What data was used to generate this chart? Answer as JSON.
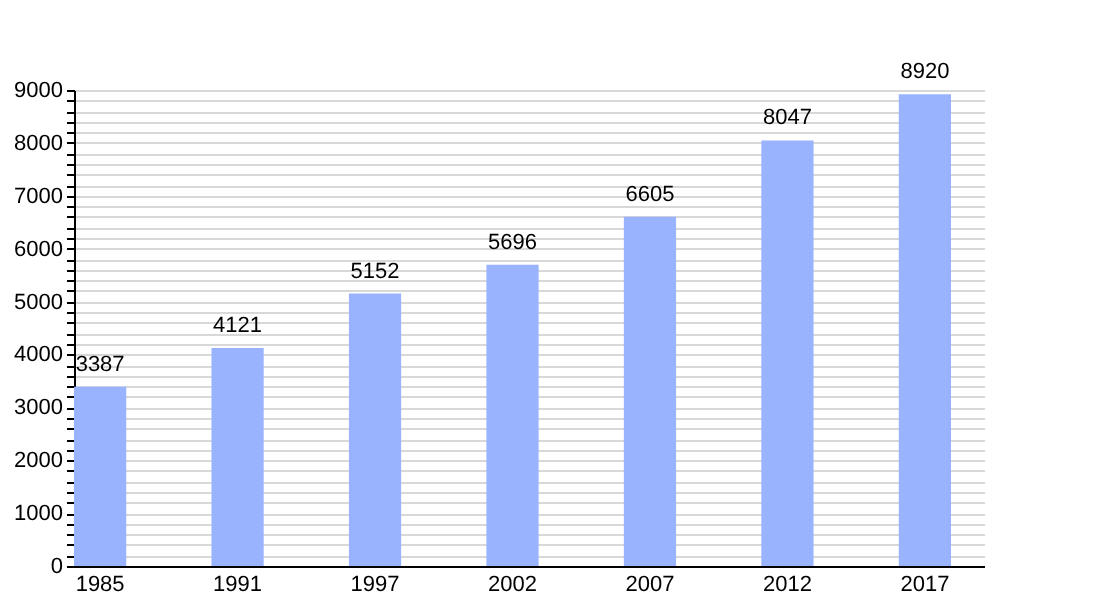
{
  "chart_data": {
    "type": "bar",
    "categories": [
      "1985",
      "1991",
      "1997",
      "2002",
      "2007",
      "2012",
      "2017"
    ],
    "values": [
      3387,
      4121,
      5152,
      5696,
      6605,
      8047,
      8920
    ],
    "color": "#99b3ff",
    "data_labels": true,
    "ylim": [
      0,
      9000
    ],
    "yticks": [
      0,
      {
        "value": 200,
        "label": null
      },
      {
        "value": 400,
        "label": null
      },
      {
        "value": 600,
        "label": null
      },
      {
        "value": 800,
        "label": null
      },
      1000,
      {
        "value": 1200,
        "label": null
      },
      {
        "value": 1400,
        "label": null
      },
      {
        "value": 1600,
        "label": null
      },
      {
        "value": 1800,
        "label": null
      },
      2000,
      {
        "value": 2200,
        "label": null
      },
      {
        "value": 2400,
        "label": null
      },
      {
        "value": 2600,
        "label": null
      },
      {
        "value": 2800,
        "label": null
      },
      3000,
      {
        "value": 3200,
        "label": null
      },
      {
        "value": 3400,
        "label": null
      },
      {
        "value": 3600,
        "label": null
      },
      {
        "value": 3800,
        "label": null
      },
      4000,
      {
        "value": 4200,
        "label": null
      },
      {
        "value": 4400,
        "label": null
      },
      {
        "value": 4600,
        "label": null
      },
      {
        "value": 4800,
        "label": null
      },
      5000,
      {
        "value": 5200,
        "label": null
      },
      {
        "value": 5400,
        "label": null
      },
      {
        "value": 5600,
        "label": null
      },
      {
        "value": 5800,
        "label": null
      },
      6000,
      {
        "value": 6200,
        "label": null
      },
      {
        "value": 6400,
        "label": null
      },
      {
        "value": 6600,
        "label": null
      },
      {
        "value": 6800,
        "label": null
      },
      7000,
      {
        "value": 7200,
        "label": null
      },
      {
        "value": 7400,
        "label": null
      },
      {
        "value": 7600,
        "label": null
      },
      {
        "value": 7800,
        "label": null
      },
      8000,
      {
        "value": 8200,
        "label": null
      },
      {
        "value": 8400,
        "label": null
      },
      {
        "value": 8600,
        "label": null
      },
      {
        "value": 8800,
        "label": null
      },
      9000
    ],
    "grid": "y"
  }
}
